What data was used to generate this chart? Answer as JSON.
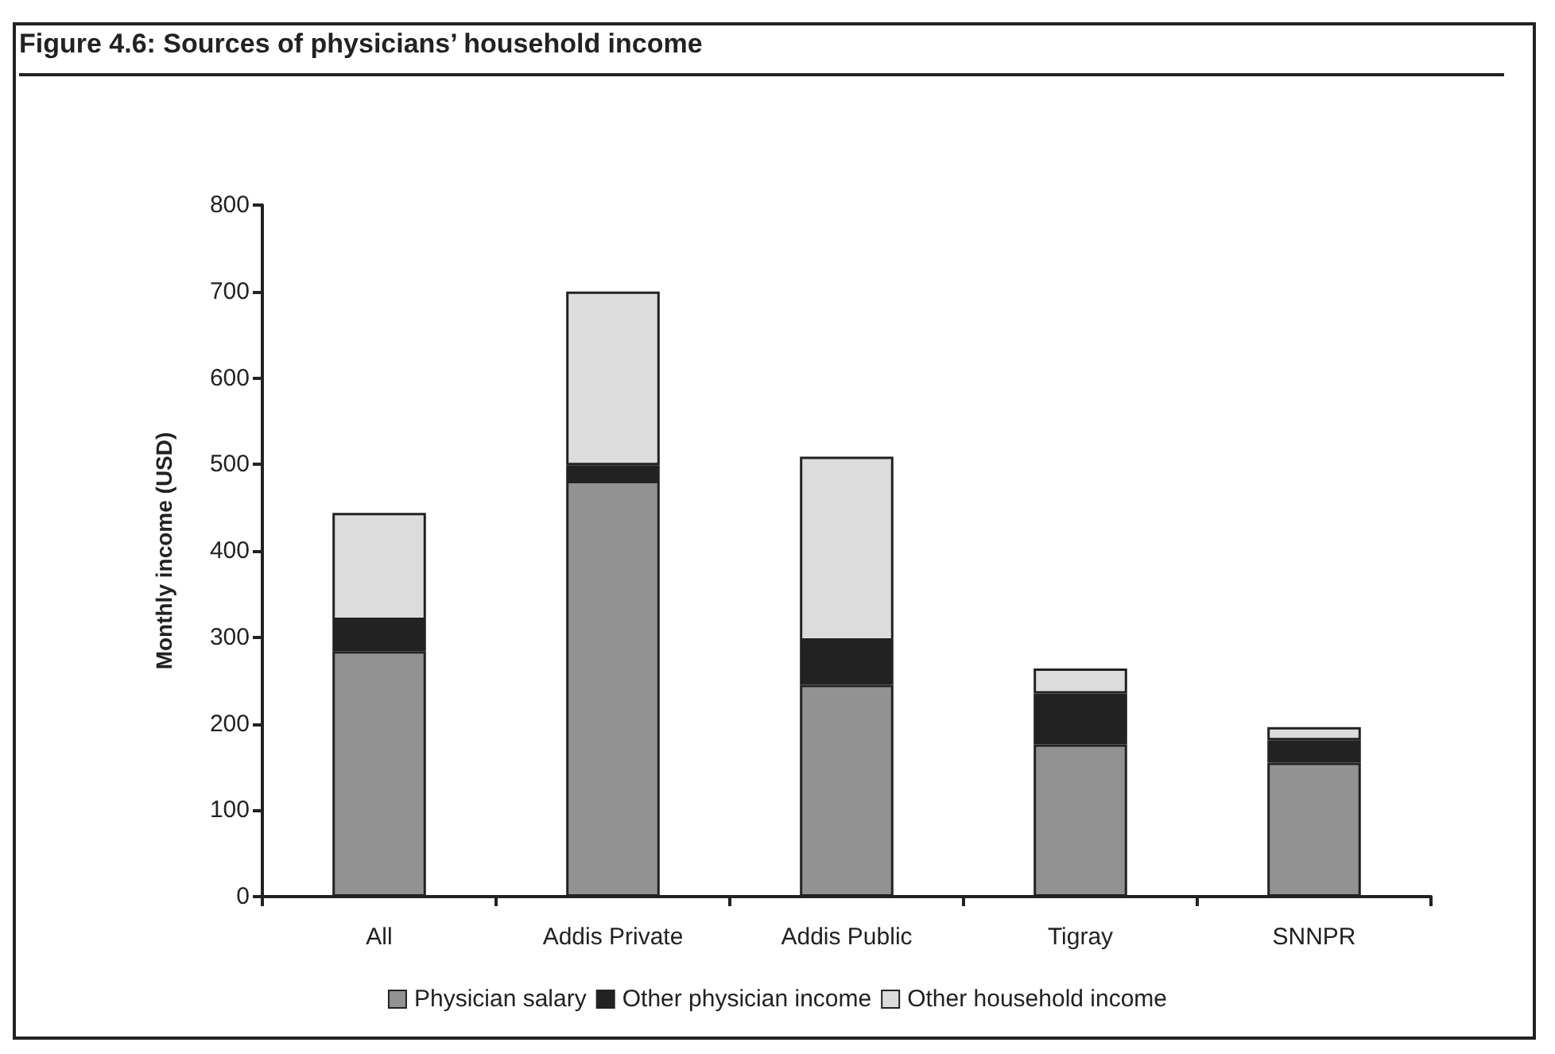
{
  "chart_data": {
    "type": "bar",
    "title": "Figure 4.6: Sources of physicians’ household income",
    "ylabel": "Monthly income (USD)",
    "categories": [
      "All",
      "Addis Private",
      "Addis Public",
      "Tigray",
      "SNNPR"
    ],
    "stacked": true,
    "series": [
      {
        "name": "Physician salary",
        "color": "#929292",
        "values": [
          284,
          481,
          245,
          176,
          155
        ]
      },
      {
        "name": "Other physician income",
        "color": "#222222",
        "values": [
          36,
          18,
          51,
          59,
          26
        ]
      },
      {
        "name": "Other household income",
        "color": "#dcdcdc",
        "values": [
          124,
          201,
          213,
          29,
          15
        ]
      }
    ],
    "ylim": [
      0,
      800
    ],
    "yticks": [
      0,
      100,
      200,
      300,
      400,
      500,
      600,
      700,
      800
    ],
    "grid": false,
    "legend": "bottom"
  }
}
